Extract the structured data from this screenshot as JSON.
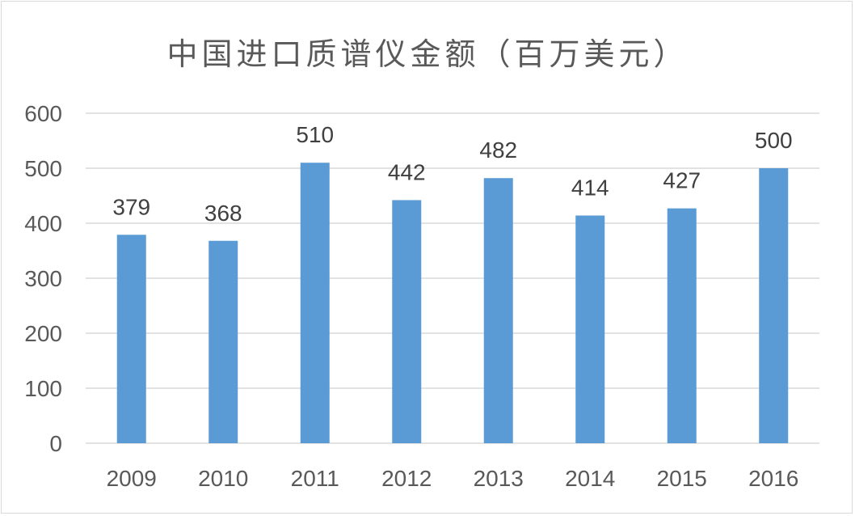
{
  "chart_data": {
    "type": "bar",
    "title": "中国进口质谱仪金额（百万美元）",
    "xlabel": "",
    "ylabel": "",
    "categories": [
      "2009",
      "2010",
      "2011",
      "2012",
      "2013",
      "2014",
      "2015",
      "2016"
    ],
    "values": [
      379,
      368,
      510,
      442,
      482,
      414,
      427,
      500
    ],
    "data_labels": [
      "379",
      "368",
      "510",
      "442",
      "482",
      "414",
      "427",
      "500"
    ],
    "ylim": [
      0,
      600
    ],
    "y_ticks": [
      0,
      100,
      200,
      300,
      400,
      500,
      600
    ],
    "y_tick_labels": [
      "0",
      "100",
      "200",
      "300",
      "400",
      "500",
      "600"
    ],
    "grid": true,
    "legend": "none",
    "colors": {
      "bar": "#5b9bd5",
      "grid": "#d9d9d9",
      "axis_text": "#595959",
      "label_text": "#404040"
    }
  }
}
